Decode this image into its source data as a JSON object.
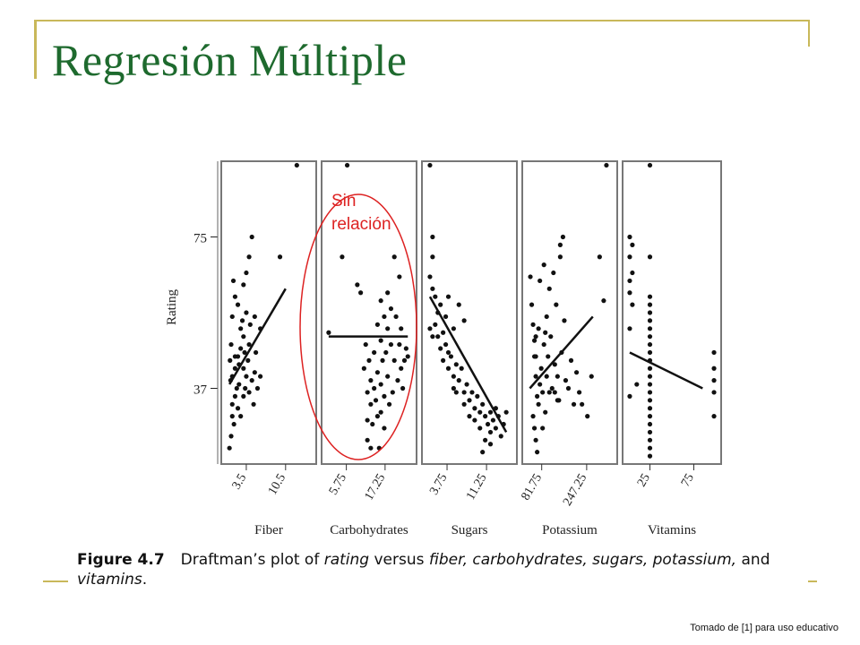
{
  "slide": {
    "title": "Regresión Múltiple",
    "credit": "Tomado de [1] para uso educativo"
  },
  "annotation": {
    "line1": "Sin",
    "line2": "relación",
    "color": "#dd2222"
  },
  "caption": {
    "label": "Figure 4.7",
    "t1": "Draftman’s plot of ",
    "t2": "rating",
    "t3": " versus ",
    "t4": "fiber, carbohydrates, sugars, potassium,",
    "t5": " and",
    "t6": "vitamins",
    "t7": "."
  },
  "chart_data": {
    "type": "scatter",
    "title": "Draftman’s plot of rating versus fiber, carbohydrates, sugars, potassium, and vitamins",
    "ylabel": "Rating",
    "yticks": [
      37,
      75
    ],
    "ylim": [
      18,
      94
    ],
    "panels": [
      {
        "name": "fiber",
        "xlabel": "Fiber",
        "xlim": [
          0,
          15
        ],
        "xticks": [
          "3.5",
          "10.5"
        ],
        "xtick_values": [
          3.5,
          10.5
        ],
        "fit": [
          [
            0.5,
            38
          ],
          [
            10.5,
            62
          ]
        ],
        "points": [
          [
            0.5,
            22
          ],
          [
            0.8,
            25
          ],
          [
            1,
            30
          ],
          [
            1,
            33
          ],
          [
            1.3,
            28
          ],
          [
            1.5,
            35
          ],
          [
            1.8,
            37
          ],
          [
            2,
            32
          ],
          [
            2.2,
            38
          ],
          [
            2.5,
            30
          ],
          [
            1,
            40
          ],
          [
            1.5,
            42
          ],
          [
            2,
            45
          ],
          [
            2.5,
            47
          ],
          [
            3,
            35
          ],
          [
            3,
            42
          ],
          [
            3,
            50
          ],
          [
            3.3,
            37
          ],
          [
            3.5,
            40
          ],
          [
            3.8,
            44
          ],
          [
            4,
            36
          ],
          [
            4,
            48
          ],
          [
            4.5,
            39
          ],
          [
            4.8,
            33
          ],
          [
            5,
            41
          ],
          [
            5.5,
            37
          ],
          [
            6,
            40
          ],
          [
            1,
            55
          ],
          [
            1.5,
            60
          ],
          [
            2,
            58
          ],
          [
            3,
            63
          ],
          [
            3.5,
            66
          ],
          [
            4,
            70
          ],
          [
            4.5,
            75
          ],
          [
            5,
            55
          ],
          [
            6,
            52
          ],
          [
            0.8,
            48
          ],
          [
            2.5,
            52
          ],
          [
            3.5,
            56
          ],
          [
            9.5,
            70
          ],
          [
            12.5,
            93
          ],
          [
            1.2,
            64
          ],
          [
            2.8,
            54
          ],
          [
            3.2,
            46
          ],
          [
            4.2,
            53
          ],
          [
            1.5,
            45
          ],
          [
            2.2,
            43
          ],
          [
            0.6,
            44
          ],
          [
            0.7,
            39
          ],
          [
            5.2,
            46
          ]
        ]
      },
      {
        "name": "carbohydrates",
        "xlabel": "Carbohydrates",
        "xlim": [
          0,
          25
        ],
        "xticks": [
          "5.75",
          "17.25"
        ],
        "xtick_values": [
          5.75,
          17.25
        ],
        "fit": [
          [
            0.5,
            50
          ],
          [
            24,
            50
          ]
        ],
        "points": [
          [
            0.5,
            51
          ],
          [
            4.5,
            70
          ],
          [
            6,
            93
          ],
          [
            9,
            63
          ],
          [
            10,
            61
          ],
          [
            11,
            42
          ],
          [
            11.5,
            48
          ],
          [
            12,
            36
          ],
          [
            12,
            29
          ],
          [
            12.5,
            44
          ],
          [
            13,
            39
          ],
          [
            13,
            33
          ],
          [
            13.5,
            28
          ],
          [
            14,
            46
          ],
          [
            14,
            37
          ],
          [
            14.5,
            34
          ],
          [
            15,
            53
          ],
          [
            15,
            41
          ],
          [
            15,
            30
          ],
          [
            15.5,
            22
          ],
          [
            16,
            59
          ],
          [
            16,
            49
          ],
          [
            16,
            38
          ],
          [
            16,
            31
          ],
          [
            16.5,
            44
          ],
          [
            17,
            55
          ],
          [
            17,
            35
          ],
          [
            17,
            27
          ],
          [
            17.5,
            46
          ],
          [
            18,
            61
          ],
          [
            18,
            52
          ],
          [
            18,
            40
          ],
          [
            18.5,
            33
          ],
          [
            19,
            57
          ],
          [
            19,
            48
          ],
          [
            19.5,
            36
          ],
          [
            20,
            70
          ],
          [
            20,
            44
          ],
          [
            20.5,
            55
          ],
          [
            21,
            39
          ],
          [
            21.5,
            65
          ],
          [
            21.5,
            48
          ],
          [
            22,
            52
          ],
          [
            22.5,
            37
          ],
          [
            22,
            42
          ],
          [
            23,
            44
          ],
          [
            23.5,
            47
          ],
          [
            24,
            45
          ],
          [
            12,
            24
          ],
          [
            13,
            22
          ]
        ]
      },
      {
        "name": "sugars",
        "xlabel": "Sugars",
        "xlim": [
          0,
          16
        ],
        "xticks": [
          "3.75",
          "11.25"
        ],
        "xtick_values": [
          3.75,
          11.25
        ],
        "fit": [
          [
            0.5,
            60
          ],
          [
            15,
            26
          ]
        ],
        "points": [
          [
            0.5,
            93
          ],
          [
            1,
            75
          ],
          [
            1,
            70
          ],
          [
            0.5,
            65
          ],
          [
            1,
            62
          ],
          [
            1.5,
            60
          ],
          [
            2,
            56
          ],
          [
            2.5,
            58
          ],
          [
            0.5,
            52
          ],
          [
            1,
            50
          ],
          [
            1.5,
            53
          ],
          [
            2,
            50
          ],
          [
            2.5,
            47
          ],
          [
            3,
            51
          ],
          [
            3,
            44
          ],
          [
            3.5,
            48
          ],
          [
            4,
            46
          ],
          [
            4,
            42
          ],
          [
            4.5,
            45
          ],
          [
            5,
            40
          ],
          [
            5,
            37
          ],
          [
            5.5,
            43
          ],
          [
            5.5,
            36
          ],
          [
            6,
            39
          ],
          [
            6.5,
            42
          ],
          [
            7,
            36
          ],
          [
            7,
            33
          ],
          [
            7.5,
            38
          ],
          [
            8,
            34
          ],
          [
            8,
            30
          ],
          [
            8.5,
            36
          ],
          [
            9,
            32
          ],
          [
            9,
            29
          ],
          [
            9.5,
            35
          ],
          [
            10,
            31
          ],
          [
            10,
            27
          ],
          [
            10.5,
            33
          ],
          [
            11,
            30
          ],
          [
            11,
            24
          ],
          [
            11.5,
            28
          ],
          [
            12,
            31
          ],
          [
            12,
            26
          ],
          [
            12.5,
            29
          ],
          [
            13,
            32
          ],
          [
            13,
            27
          ],
          [
            13.5,
            30
          ],
          [
            14,
            25
          ],
          [
            14.5,
            28
          ],
          [
            15,
            31
          ],
          [
            4,
            60
          ],
          [
            3.5,
            55
          ],
          [
            6,
            58
          ],
          [
            7,
            54
          ],
          [
            5,
            52
          ],
          [
            10.5,
            21
          ],
          [
            12,
            23
          ]
        ]
      },
      {
        "name": "potassium",
        "xlabel": "Potassium",
        "xlim": [
          30,
          340
        ],
        "xticks": [
          "81.75",
          "247.25"
        ],
        "xtick_values": [
          81.75,
          247.25
        ],
        "fit": [
          [
            38,
            37
          ],
          [
            270,
            55
          ]
        ],
        "points": [
          [
            40,
            65
          ],
          [
            45,
            58
          ],
          [
            50,
            53
          ],
          [
            55,
            49
          ],
          [
            60,
            45
          ],
          [
            60,
            40
          ],
          [
            65,
            35
          ],
          [
            50,
            30
          ],
          [
            55,
            27
          ],
          [
            60,
            24
          ],
          [
            65,
            21
          ],
          [
            70,
            33
          ],
          [
            75,
            38
          ],
          [
            80,
            42
          ],
          [
            85,
            36
          ],
          [
            90,
            48
          ],
          [
            95,
            51
          ],
          [
            100,
            40
          ],
          [
            100,
            55
          ],
          [
            105,
            45
          ],
          [
            110,
            62
          ],
          [
            115,
            50
          ],
          [
            120,
            37
          ],
          [
            125,
            66
          ],
          [
            130,
            43
          ],
          [
            135,
            58
          ],
          [
            140,
            40
          ],
          [
            145,
            34
          ],
          [
            150,
            73
          ],
          [
            155,
            46
          ],
          [
            160,
            75
          ],
          [
            165,
            54
          ],
          [
            170,
            39
          ],
          [
            180,
            37
          ],
          [
            190,
            44
          ],
          [
            200,
            33
          ],
          [
            210,
            41
          ],
          [
            220,
            36
          ],
          [
            230,
            33
          ],
          [
            250,
            30
          ],
          [
            265,
            40
          ],
          [
            75,
            64
          ],
          [
            85,
            27
          ],
          [
            95,
            31
          ],
          [
            110,
            36
          ],
          [
            130,
            36
          ],
          [
            150,
            70
          ],
          [
            60,
            50
          ],
          [
            70,
            52
          ],
          [
            55,
            45
          ],
          [
            90,
            68
          ],
          [
            320,
            93
          ],
          [
            310,
            59
          ],
          [
            295,
            70
          ],
          [
            140,
            34
          ]
        ]
      },
      {
        "name": "vitamins",
        "xlabel": "Vitamins",
        "xlim": [
          0,
          100
        ],
        "xticks": [
          "25",
          "75"
        ],
        "xtick_values": [
          25,
          75
        ],
        "fit": [
          [
            2,
            46
          ],
          [
            85,
            37
          ]
        ],
        "points": [
          [
            2,
            75
          ],
          [
            2,
            70
          ],
          [
            2,
            64
          ],
          [
            2,
            61
          ],
          [
            2,
            52
          ],
          [
            2,
            35
          ],
          [
            5,
            73
          ],
          [
            5,
            66
          ],
          [
            5,
            58
          ],
          [
            10,
            38
          ],
          [
            25,
            93
          ],
          [
            25,
            70
          ],
          [
            25,
            60
          ],
          [
            25,
            58
          ],
          [
            25,
            56
          ],
          [
            25,
            54
          ],
          [
            25,
            52
          ],
          [
            25,
            50
          ],
          [
            25,
            48
          ],
          [
            25,
            46
          ],
          [
            25,
            44
          ],
          [
            25,
            42
          ],
          [
            25,
            40
          ],
          [
            25,
            38
          ],
          [
            25,
            36
          ],
          [
            25,
            34
          ],
          [
            25,
            32
          ],
          [
            25,
            30
          ],
          [
            25,
            28
          ],
          [
            25,
            26
          ],
          [
            25,
            24
          ],
          [
            25,
            22
          ],
          [
            25,
            20
          ],
          [
            98,
            46
          ],
          [
            98,
            42
          ],
          [
            98,
            39
          ],
          [
            98,
            36
          ],
          [
            98,
            30
          ]
        ]
      }
    ]
  }
}
